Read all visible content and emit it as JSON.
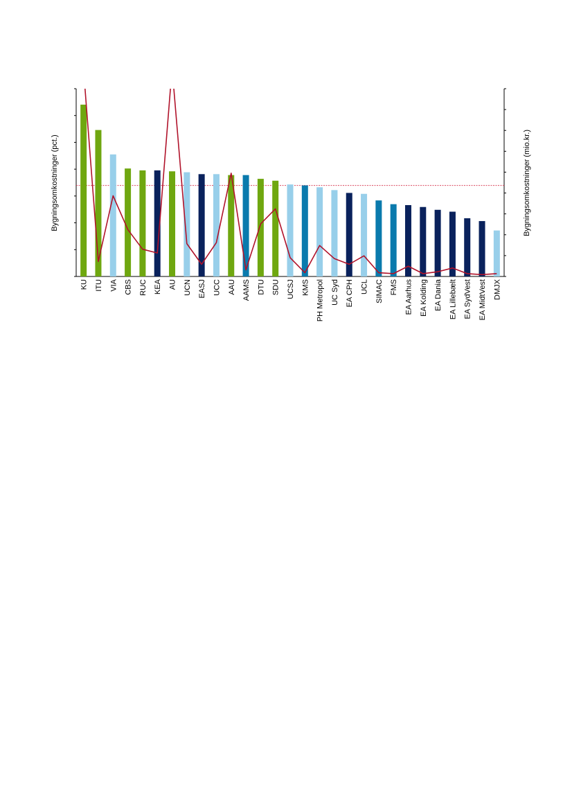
{
  "chart_data": {
    "type": "bar",
    "title": "",
    "y_left_label": "Bygningsomkostninger (pct.)",
    "y_right_label": "Bygningsomkostninger (mio.kr.)",
    "y_left_lim": [
      0,
      100
    ],
    "y_right_lim": [
      0,
      100
    ],
    "y_left_tick_count": 7,
    "y_right_tick_count": 9,
    "reference_line_value": 48.5,
    "categories": [
      "KU",
      "ITU",
      "VIA",
      "CBS",
      "RUC",
      "KEA",
      "AU",
      "UCN",
      "EASJ",
      "UCC",
      "AAU",
      "AAMS",
      "DTU",
      "SDU",
      "UCSJ",
      "KMS",
      "PH Metropol",
      "UC Syd",
      "EA CPH",
      "UCL",
      "SIMAC",
      "FMS",
      "EA Aarhus",
      "EA Kolding",
      "EA Dania",
      "EA Lillebælt",
      "EA SydVest",
      "EA MidtVest",
      "DMJX"
    ],
    "colors": {
      "green": "#6fa710",
      "light_blue": "#98cfea",
      "navy": "#0a225c",
      "teal": "#0a7aad",
      "line": "#b0122a",
      "reference": "#d9475e"
    },
    "series": [
      {
        "type": "bar",
        "values": [
          91.5,
          78,
          65,
          57.5,
          56.5,
          56.5,
          56,
          55.5,
          54.5,
          54.5,
          54,
          54,
          52,
          51,
          49,
          48.5,
          47.5,
          46,
          44.5,
          44,
          40.5,
          38.5,
          38,
          37,
          35.5,
          34.5,
          31,
          29.5,
          24.5
        ],
        "bar_colors": [
          "green",
          "green",
          "light_blue",
          "green",
          "green",
          "navy",
          "green",
          "light_blue",
          "navy",
          "light_blue",
          "green",
          "teal",
          "green",
          "green",
          "light_blue",
          "teal",
          "light_blue",
          "light_blue",
          "navy",
          "light_blue",
          "teal",
          "teal",
          "navy",
          "navy",
          "navy",
          "navy",
          "navy",
          "navy",
          "light_blue"
        ]
      },
      {
        "type": "line",
        "values": [
          110,
          8,
          43,
          25,
          14.5,
          12.5,
          111,
          17.5,
          6.5,
          18,
          55,
          3.5,
          28,
          36,
          10,
          2,
          16.5,
          9.5,
          6.5,
          11,
          2,
          1.5,
          5.5,
          1.5,
          2.5,
          4.5,
          1.5,
          1,
          1.5
        ]
      }
    ]
  }
}
